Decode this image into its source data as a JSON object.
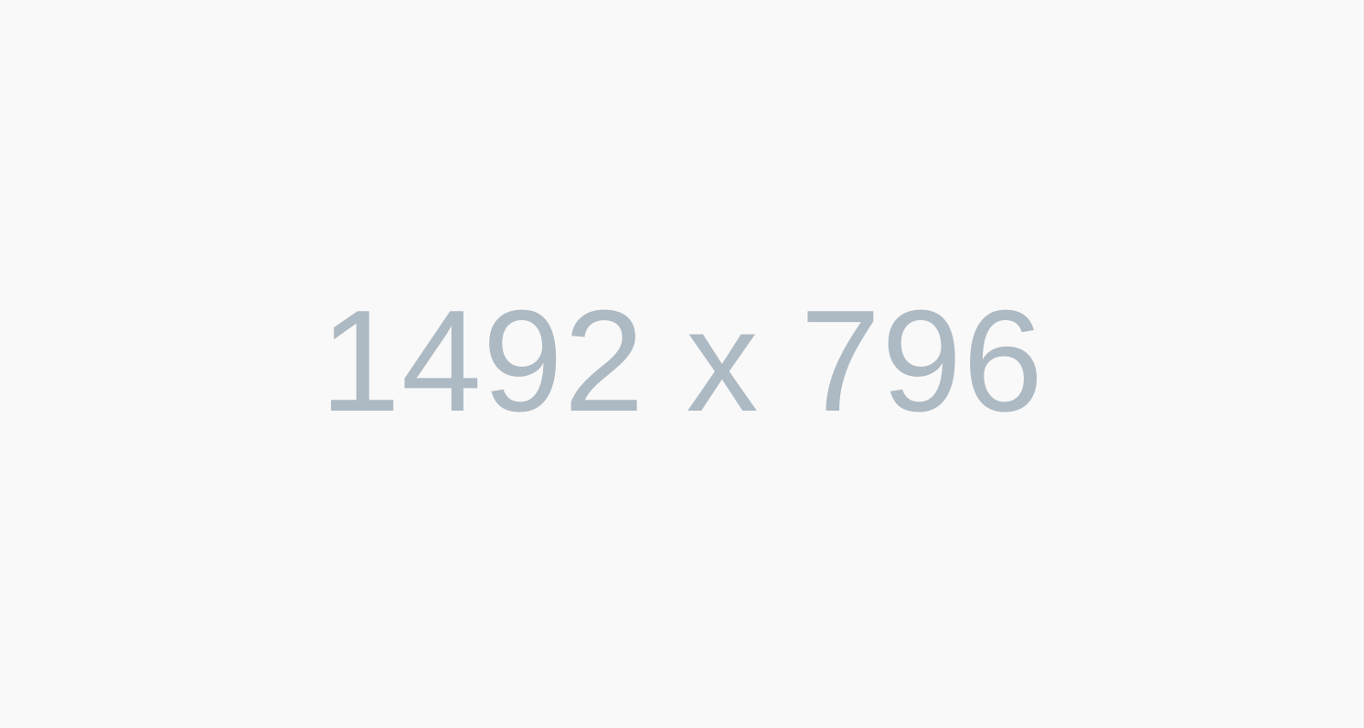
{
  "placeholder": {
    "dimensions_text": "1492 x 796",
    "text_color": "#adb9c3",
    "background_color": "#f9f9f9"
  }
}
